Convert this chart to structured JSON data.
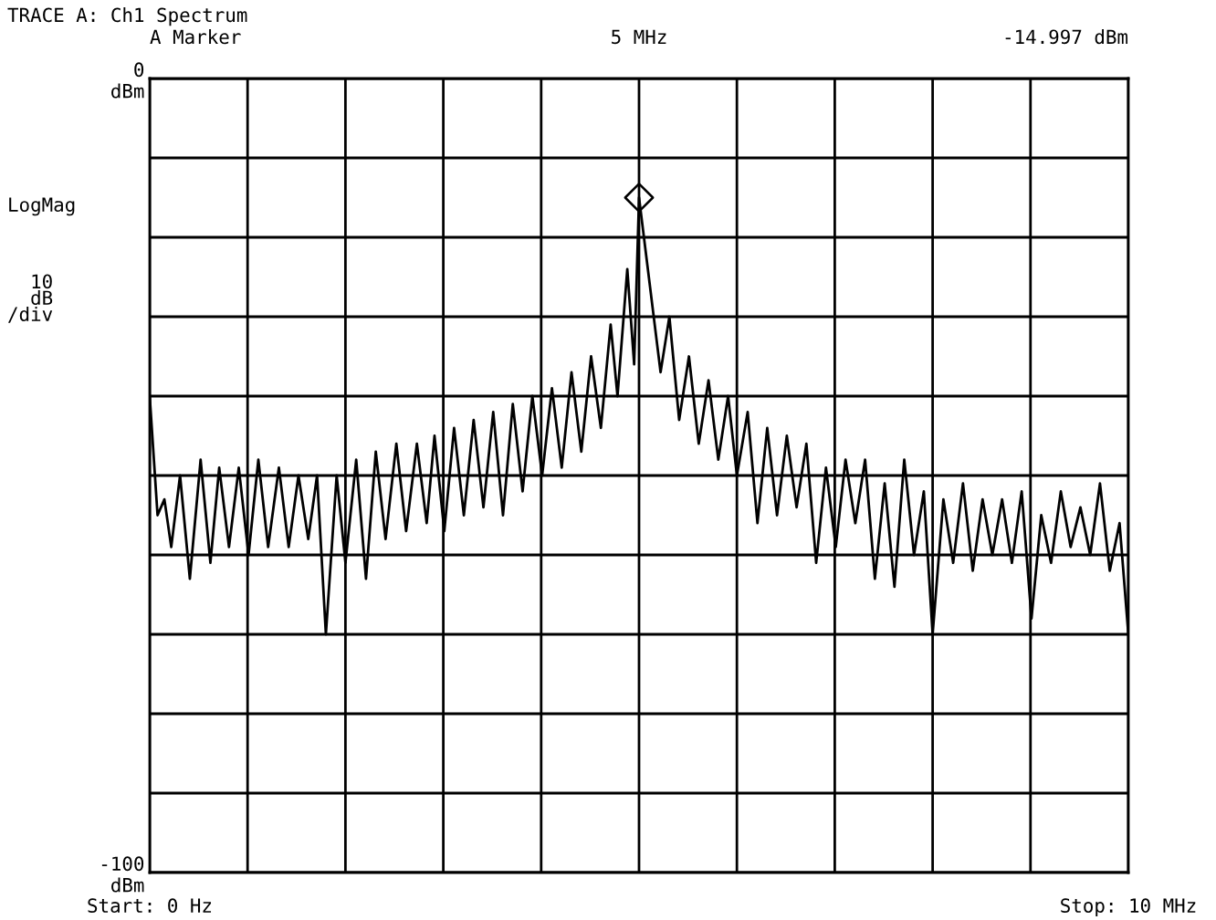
{
  "chart_data": {
    "type": "line",
    "title": "TRACE A: Ch1 Spectrum",
    "annotations": [
      "A Marker",
      "5 MHz",
      "-14.997 dBm",
      "LogMag",
      "10\ndB\n/div"
    ],
    "xlim": [
      0,
      10
    ],
    "xticks": [
      {
        "value": 0,
        "label": "Start: 0 Hz"
      },
      {
        "value": 1,
        "label": null
      },
      {
        "value": 2,
        "label": null
      },
      {
        "value": 3,
        "label": null
      },
      {
        "value": 4,
        "label": null
      },
      {
        "value": 5,
        "label": null
      },
      {
        "value": 6,
        "label": null
      },
      {
        "value": 7,
        "label": null
      },
      {
        "value": 8,
        "label": null
      },
      {
        "value": 9,
        "label": null
      },
      {
        "value": 10,
        "label": "Stop: 10 MHz"
      }
    ],
    "ylim": [
      -100,
      0
    ],
    "yticks": [
      {
        "value": 0,
        "label": "0\ndBm"
      },
      {
        "value": -10,
        "label": null
      },
      {
        "value": -20,
        "label": null
      },
      {
        "value": -30,
        "label": null
      },
      {
        "value": -40,
        "label": null
      },
      {
        "value": -50,
        "label": null
      },
      {
        "value": -60,
        "label": null
      },
      {
        "value": -70,
        "label": null
      },
      {
        "value": -80,
        "label": null
      },
      {
        "value": -90,
        "label": null
      },
      {
        "value": -100,
        "label": "-100\ndBm"
      }
    ],
    "grid": true,
    "legend": false,
    "series": [
      {
        "color": "#000000",
        "marker": "none",
        "line_style": "solid",
        "x": [
          0.0,
          0.08,
          0.15,
          0.22,
          0.31,
          0.41,
          0.52,
          0.62,
          0.71,
          0.81,
          0.91,
          1.01,
          1.11,
          1.21,
          1.32,
          1.42,
          1.52,
          1.62,
          1.71,
          1.8,
          1.91,
          2.0,
          2.11,
          2.21,
          2.31,
          2.41,
          2.52,
          2.62,
          2.73,
          2.83,
          2.91,
          3.01,
          3.11,
          3.21,
          3.31,
          3.41,
          3.51,
          3.61,
          3.71,
          3.81,
          3.91,
          4.01,
          4.11,
          4.21,
          4.31,
          4.41,
          4.51,
          4.61,
          4.71,
          4.78,
          4.88,
          4.95,
          5.0,
          5.22,
          5.31,
          5.41,
          5.51,
          5.61,
          5.71,
          5.81,
          5.91,
          6.0,
          6.11,
          6.21,
          6.31,
          6.41,
          6.51,
          6.61,
          6.71,
          6.81,
          6.91,
          7.01,
          7.11,
          7.21,
          7.31,
          7.41,
          7.51,
          7.61,
          7.71,
          7.81,
          7.91,
          8.0,
          8.11,
          8.21,
          8.31,
          8.41,
          8.51,
          8.61,
          8.71,
          8.81,
          8.91,
          9.01,
          9.11,
          9.21,
          9.31,
          9.41,
          9.51,
          9.61,
          9.71,
          9.81,
          9.91,
          10.0
        ],
        "values": [
          -40,
          -55,
          -53,
          -59,
          -50,
          -63,
          -48,
          -61,
          -49,
          -59,
          -49,
          -60,
          -48,
          -59,
          -49,
          -59,
          -50,
          -58,
          -50,
          -70,
          -50,
          -61,
          -48,
          -63,
          -47,
          -58,
          -46,
          -57,
          -46,
          -56,
          -45,
          -57,
          -44,
          -55,
          -43,
          -54,
          -42,
          -55,
          -41,
          -52,
          -40,
          -50,
          -39,
          -49,
          -37,
          -47,
          -35,
          -44,
          -31,
          -40,
          -24,
          -36,
          -15.0,
          -37,
          -30,
          -43,
          -35,
          -46,
          -38,
          -48,
          -40,
          -50,
          -42,
          -56,
          -44,
          -55,
          -45,
          -54,
          -46,
          -61,
          -49,
          -59,
          -48,
          -56,
          -48,
          -63,
          -51,
          -64,
          -48,
          -60,
          -52,
          -70,
          -53,
          -61,
          -51,
          -62,
          -53,
          -60,
          -53,
          -61,
          -52,
          -68,
          -55,
          -61,
          -52,
          -59,
          -54,
          -60,
          -51,
          -62,
          -56,
          -70
        ]
      },
      {
        "type": "scatter",
        "color": "#000000",
        "marker": "diamond",
        "x": [
          5.0
        ],
        "values": [
          -15
        ]
      }
    ]
  }
}
